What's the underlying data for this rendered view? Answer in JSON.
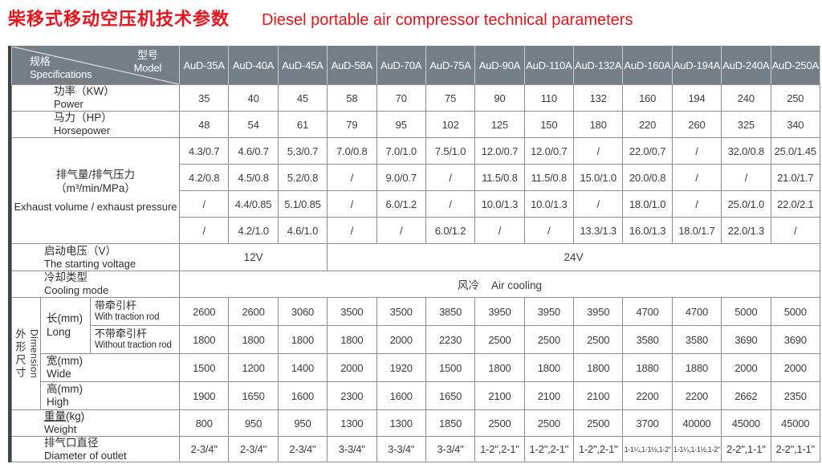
{
  "title": {
    "zh": "柴移式移动空压机技术参数",
    "en": "Diesel portable air compressor technical parameters"
  },
  "colors": {
    "title_red": "#e8141c",
    "header_bg": "#737e87",
    "border_gray": "#8d8d8d",
    "left_strip": "#3c444a"
  },
  "table": {
    "corner": {
      "model_zh": "型号",
      "model_en": "Model",
      "spec_zh": "规格",
      "spec_en": "Specifications"
    },
    "models": [
      "AuD-35A",
      "AuD-40A",
      "AuD-45A",
      "AuD-58A",
      "AuD-70A",
      "AuD-75A",
      "AuD-90A",
      "AuD-110A",
      "AuD-132A",
      "AuD-160A",
      "AuD-194A",
      "AuD-240A",
      "AuD-250A"
    ],
    "rows": {
      "power": {
        "label_zh": "功率（KW）",
        "label_en": "Power",
        "values": [
          "35",
          "40",
          "45",
          "58",
          "70",
          "75",
          "90",
          "110",
          "132",
          "160",
          "194",
          "240",
          "250"
        ]
      },
      "horsepower": {
        "label_zh": "马力（HP）",
        "label_en": "Horsepower",
        "values": [
          "48",
          "54",
          "61",
          "79",
          "95",
          "102",
          "125",
          "150",
          "180",
          "220",
          "260",
          "325",
          "340"
        ]
      },
      "exhaust": {
        "label_zh1": "排气量/排气压力",
        "label_zh2": "（m³/min/MPa）",
        "label_en": "Exhaust volume / exhaust pressure",
        "row1": [
          "4.3/0.7",
          "4.6/0.7",
          "5.3/0.7",
          "7.0/0.8",
          "7.0/1.0",
          "7.5/1.0",
          "12.0/0.7",
          "12.0/0.7",
          "/",
          "22.0/0.7",
          "/",
          "32.0/0.8",
          "25.0/1.45"
        ],
        "row2": [
          "4.2/0.8",
          "4.5/0.8",
          "5.2/0.8",
          "/",
          "9.0/0.7",
          "/",
          "11.5/0.8",
          "11.5/0.8",
          "15.0/1.0",
          "20.0/0.8",
          "/",
          "/",
          "21.0/1.7"
        ],
        "row3": [
          "/",
          "4.4/0.85",
          "5.1/0.85",
          "/",
          "6.0/1.2",
          "/",
          "10.0/1.3",
          "10.0/1.3",
          "/",
          "18.0/1.0",
          "/",
          "25.0/1.0",
          "22.0/2.1"
        ],
        "row4": [
          "/",
          "4.2/1.0",
          "4.6/1.0",
          "/",
          "/",
          "6.0/1.2",
          "/",
          "/",
          "13.3/1.3",
          "16.0/1.3",
          "18.0/1.7",
          "22.0/1.3",
          "/"
        ]
      },
      "voltage": {
        "label_zh": "启动电压（V）",
        "label_en": "The starting voltage",
        "value_12": "12V",
        "value_24": "24V"
      },
      "cooling": {
        "label_zh": "冷却类型",
        "label_en": "Cooling mode",
        "value": "风冷    Air cooling"
      },
      "dimension": {
        "strip_zh": "外形尺寸",
        "strip_en": "Dimension",
        "long": {
          "label_zh": "长(mm)",
          "label_en": "Long",
          "with_rod": {
            "label_zh": "带牵引杆",
            "label_en": "With traction rod",
            "values": [
              "2600",
              "2600",
              "3060",
              "3500",
              "3500",
              "3850",
              "3950",
              "3950",
              "3950",
              "4700",
              "4700",
              "5000",
              "5000"
            ]
          },
          "without_rod": {
            "label_zh": "不带牵引杆",
            "label_en": "Without traction rod",
            "values": [
              "1800",
              "1800",
              "1800",
              "1800",
              "2000",
              "2230",
              "2500",
              "2500",
              "2500",
              "3580",
              "3580",
              "3690",
              "3690"
            ]
          }
        },
        "wide": {
          "label_zh": "宽(mm)",
          "label_en": "Wide",
          "values": [
            "1500",
            "1200",
            "1400",
            "2000",
            "1920",
            "1500",
            "1800",
            "1800",
            "1800",
            "1880",
            "1880",
            "2000",
            "2000"
          ]
        },
        "high": {
          "label_zh": "高(mm)",
          "label_en": "High",
          "values": [
            "1900",
            "1650",
            "1600",
            "2300",
            "1600",
            "1650",
            "2100",
            "2100",
            "2100",
            "2200",
            "2200",
            "2662",
            "2350"
          ]
        }
      },
      "weight": {
        "label_zh_main": "重量",
        "label_zh_unit": "(kg)",
        "label_en": "Weight",
        "values": [
          "800",
          "950",
          "950",
          "1300",
          "1300",
          "1850",
          "2500",
          "2500",
          "2500",
          "3700",
          "40000",
          "45000",
          "45000"
        ]
      },
      "outlet": {
        "label_zh": "排气口直径",
        "label_en": "Diameter of outlet",
        "values": [
          "2-3/4\"",
          "2-3/4\"",
          "2-3/4\"",
          "3-3/4\"",
          "3-3/4\"",
          "3-3/4\"",
          "1-2\",2-1\"",
          "1-2\",2-1\"",
          "1-2\",2-1\"",
          "1-1¼,1-1½,1-2\"",
          "1-1¼,1-1½,1-2\"",
          "2-2\",1-1\"",
          "2-2\",1-1\""
        ]
      }
    }
  }
}
